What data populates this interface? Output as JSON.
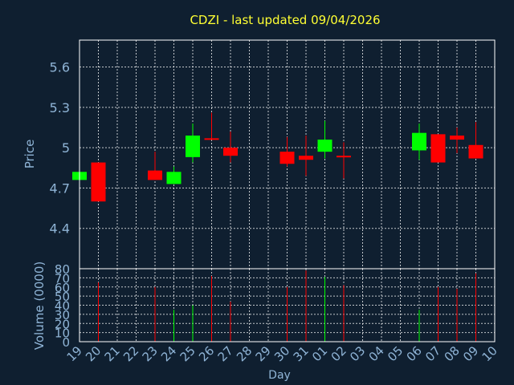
{
  "colors": {
    "background": "#0f1f30",
    "plot_border": "#ffffff",
    "grid": "#ffffff",
    "up": "#00ff00",
    "down": "#ff0000",
    "axis_text": "#8fb4d6",
    "title": "#ffff33"
  },
  "chart_data": {
    "type": "candlestick",
    "title": "CDZI - last updated 09/04/2026",
    "xlabel": "Day",
    "x_ticks": [
      "19",
      "20",
      "21",
      "22",
      "23",
      "24",
      "25",
      "26",
      "27",
      "28",
      "29",
      "30",
      "31",
      "01",
      "02",
      "03",
      "04",
      "05",
      "06",
      "07",
      "08",
      "09",
      "10"
    ],
    "price_panel": {
      "ylabel": "Price",
      "yticks": [
        "4.4",
        "4.7",
        "5",
        "5.3",
        "5.6"
      ],
      "ylim": [
        4.1,
        5.8
      ],
      "grid": true
    },
    "volume_panel": {
      "ylabel": "Volume (0000)",
      "yticks": [
        "0",
        "10",
        "20",
        "30",
        "40",
        "50",
        "60",
        "70",
        "80"
      ],
      "ylim": [
        0,
        80
      ],
      "grid": true
    },
    "series": [
      {
        "day": "19",
        "open": 4.76,
        "close": 4.82,
        "high": 4.82,
        "low": 4.76,
        "volume": 0
      },
      {
        "day": "20",
        "open": 4.89,
        "close": 4.6,
        "high": 4.89,
        "low": 4.6,
        "volume": 65
      },
      {
        "day": "23",
        "open": 4.83,
        "close": 4.76,
        "high": 4.97,
        "low": 4.76,
        "volume": 60
      },
      {
        "day": "24",
        "open": 4.73,
        "close": 4.82,
        "high": 4.86,
        "low": 4.73,
        "volume": 35
      },
      {
        "day": "25",
        "open": 4.93,
        "close": 5.09,
        "high": 5.18,
        "low": 4.89,
        "volume": 40
      },
      {
        "day": "26",
        "open": 5.07,
        "close": 5.06,
        "high": 5.26,
        "low": 5.06,
        "volume": 72
      },
      {
        "day": "27",
        "open": 5.0,
        "close": 4.94,
        "high": 5.12,
        "low": 4.89,
        "volume": 44
      },
      {
        "day": "30",
        "open": 4.97,
        "close": 4.88,
        "high": 5.08,
        "low": 4.86,
        "volume": 60
      },
      {
        "day": "31",
        "open": 4.94,
        "close": 4.91,
        "high": 5.09,
        "low": 4.79,
        "volume": 78
      },
      {
        "day": "01",
        "open": 4.97,
        "close": 5.06,
        "high": 5.2,
        "low": 4.92,
        "volume": 71
      },
      {
        "day": "02",
        "open": 4.94,
        "close": 4.93,
        "high": 5.04,
        "low": 4.77,
        "volume": 62
      },
      {
        "day": "06",
        "open": 4.98,
        "close": 5.11,
        "high": 5.18,
        "low": 4.91,
        "volume": 35
      },
      {
        "day": "07",
        "open": 5.1,
        "close": 4.89,
        "high": 5.1,
        "low": 4.89,
        "volume": 60
      },
      {
        "day": "08",
        "open": 5.09,
        "close": 5.06,
        "high": 5.15,
        "low": 4.96,
        "volume": 58
      },
      {
        "day": "09",
        "open": 5.02,
        "close": 4.92,
        "high": 5.19,
        "low": 4.92,
        "volume": 75
      }
    ]
  }
}
